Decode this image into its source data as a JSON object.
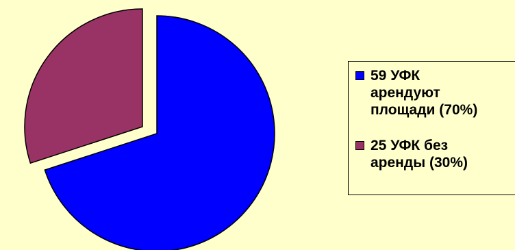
{
  "chart_data": {
    "type": "pie",
    "slices": [
      {
        "label": "59 УФК\nарендуют\nплощади (70%)",
        "value": 70,
        "color": "#0000ff"
      },
      {
        "label": "25 УФК без\nаренды (30%)",
        "value": 30,
        "color": "#993366"
      }
    ],
    "exploded": true,
    "legend": "right"
  }
}
